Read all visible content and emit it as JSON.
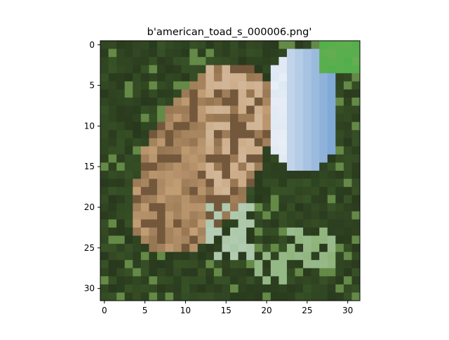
{
  "figure": {
    "title": "b'american_toad_s_000006.png'"
  },
  "image_axes": {
    "x_ticks": [
      "0",
      "5",
      "10",
      "15",
      "20",
      "25",
      "30"
    ],
    "y_ticks": [
      "0",
      "5",
      "10",
      "15",
      "20",
      "25",
      "30"
    ],
    "grid_size": [
      32,
      32
    ]
  },
  "scene": {
    "colors": {
      "background_dark": "#1f2a17",
      "foliage_green": "#3d5a2a",
      "foliage_light": "#7fa95a",
      "toad_brown": "#8a6a48",
      "toad_light": "#c9a47a",
      "toad_dark": "#5e4630",
      "blue_patch": "#7fa8d6",
      "blue_light": "#cfe0f2",
      "white_patch": "#e8eef5",
      "pale_green": "#9fbf9a",
      "bright_green": "#4fb04a"
    }
  }
}
